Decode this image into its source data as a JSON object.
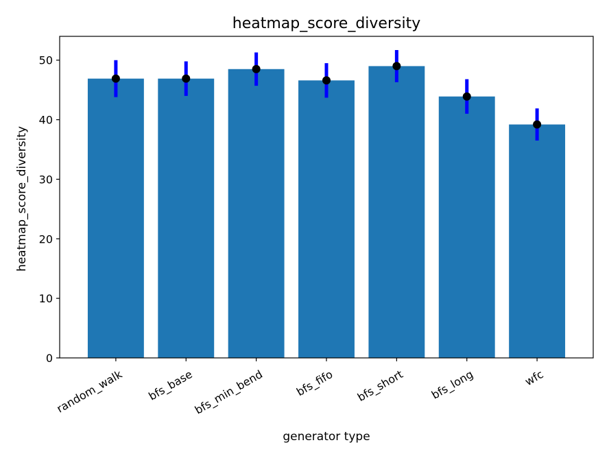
{
  "chart_data": {
    "type": "bar",
    "title": "heatmap_score_diversity",
    "xlabel": "generator type",
    "ylabel": "heatmap_score_diversity",
    "categories": [
      "random_walk",
      "bfs_base",
      "bfs_min_bend",
      "bfs_fifo",
      "bfs_short",
      "bfs_long",
      "wfc"
    ],
    "values": [
      46.9,
      46.9,
      48.5,
      46.6,
      49.0,
      43.9,
      39.2
    ],
    "errors": [
      3.1,
      2.9,
      2.8,
      2.9,
      2.7,
      2.9,
      2.7
    ],
    "yticks": [
      0,
      10,
      20,
      30,
      40,
      50
    ],
    "ylim": [
      0,
      54
    ],
    "grid": false,
    "colors": {
      "bar": "#1f77b4",
      "error_bar": "#0000ff",
      "point": "#000000"
    }
  }
}
